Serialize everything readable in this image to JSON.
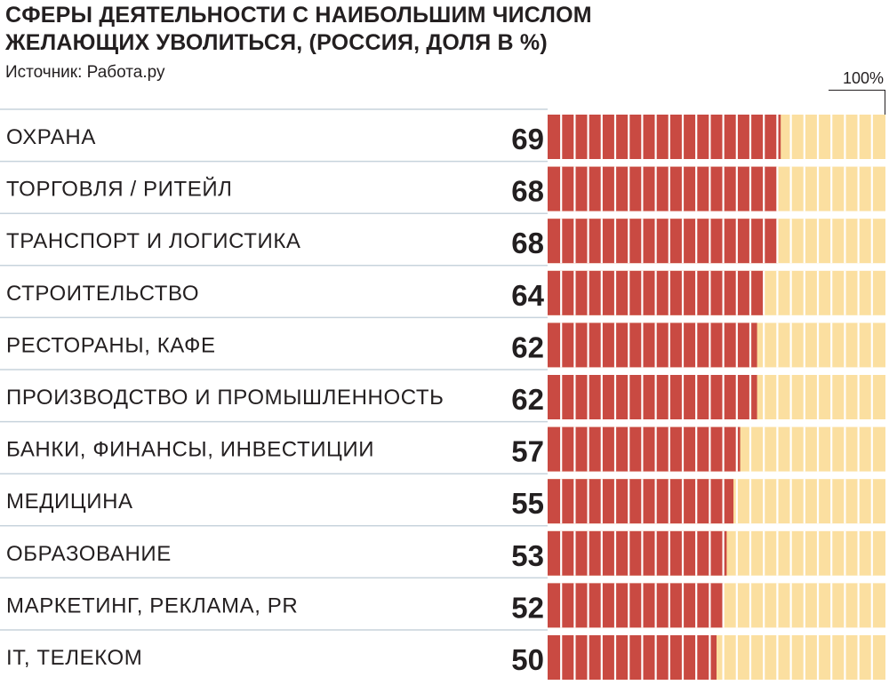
{
  "header": {
    "title": "СФЕРЫ ДЕЯТЕЛЬНОСТИ С НАИБОЛЬШИМ ЧИСЛОМ ЖЕЛАЮЩИХ УВОЛИТЬСЯ, (РОССИЯ, ДОЛЯ В %)",
    "source": "Источник: Работа.ру",
    "scale_label": "100%"
  },
  "chart_data": {
    "type": "bar",
    "orientation": "horizontal",
    "title": "СФЕРЫ ДЕЯТЕЛЬНОСТИ С НАИБОЛЬШИМ ЧИСЛОМ ЖЕЛАЮЩИХ УВОЛИТЬСЯ, (РОССИЯ, ДОЛЯ В %)",
    "unit": "%",
    "xlim": [
      0,
      100
    ],
    "categories": [
      "ОХРАНА",
      "ТОРГОВЛЯ / РИТЕЙЛ",
      "ТРАНСПОРТ И ЛОГИСТИКА",
      "СТРОИТЕЛЬСТВО",
      "РЕСТОРАНЫ, КАФЕ",
      "ПРОИЗВОДСТВО И ПРОМЫШЛЕННОСТЬ",
      "БАНКИ, ФИНАНСЫ, ИНВЕСТИЦИИ",
      "МЕДИЦИНА",
      "ОБРАЗОВАНИЕ",
      "МАРКЕТИНГ, РЕКЛАМА, PR",
      "IT, ТЕЛЕКОМ"
    ],
    "values": [
      69,
      68,
      68,
      64,
      62,
      62,
      57,
      55,
      53,
      52,
      50
    ],
    "colors": {
      "fill": "#c94a42",
      "remainder": "#fbdfa0",
      "divider": "#ffffff",
      "row_rule": "#c7d3dc",
      "text": "#231f20"
    },
    "grid": false,
    "legend": "none"
  }
}
